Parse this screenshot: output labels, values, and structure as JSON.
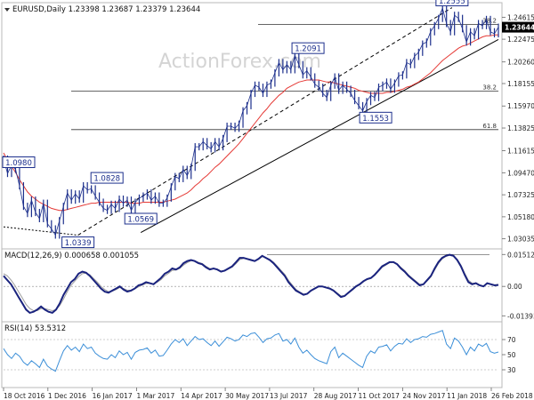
{
  "colors": {
    "price": "#1c2f8c",
    "ma": "#e53935",
    "macd": "#1a237e",
    "signal": "#9e9e9e",
    "rsi": "#3c8fd8",
    "trendline": "#000000",
    "fib": "#333333",
    "box": "#1c2f8c",
    "watermark": "#d4d4d4"
  },
  "chart_data": [
    {
      "type": "line",
      "panel": "price",
      "title": "EURUSD,Daily  1.23398 1.23687 1.23379 1.23644",
      "watermark": "ActionForex.com",
      "y_ticks": [
        "1.24615",
        "1.22475",
        "1.20260",
        "1.18155",
        "1.15970",
        "1.13825",
        "1.11615",
        "1.09470",
        "1.07325",
        "1.05180",
        "1.03035"
      ],
      "y_tick_values": [
        1.24615,
        1.22475,
        1.2026,
        1.18155,
        1.1597,
        1.13825,
        1.11615,
        1.0947,
        1.07325,
        1.0518,
        1.03035
      ],
      "current_price_label": "1.23644",
      "current_price": 1.23644,
      "ylim": [
        1.024,
        1.256
      ],
      "x_ticks": [
        "18 Oct 2016",
        "1 Dec 2016",
        "16 Jan 2017",
        "1 Mar 2017",
        "14 Apr 2017",
        "30 May 2017",
        "13 Jul 2017",
        "28 Aug 2017",
        "11 Oct 2017",
        "24 Nov 2017",
        "11 Jan 2018",
        "26 Feb 2018"
      ],
      "annotations": [
        {
          "label": "1.0980",
          "value": 1.098,
          "date": "2016-10-18"
        },
        {
          "label": "1.0339",
          "value": 1.0339,
          "date": "2017-01-03"
        },
        {
          "label": "1.0828",
          "value": 1.0828,
          "date": "2017-02-02"
        },
        {
          "label": "1.0569",
          "value": 1.0569,
          "date": "2017-03-09"
        },
        {
          "label": "1.2091",
          "value": 1.2091,
          "date": "2017-08-29"
        },
        {
          "label": "1.1553",
          "value": 1.1553,
          "date": "2017-11-07"
        },
        {
          "label": "1.2555",
          "value": 1.2555,
          "date": "2018-01-25"
        }
      ],
      "fib_levels": [
        {
          "label": "38.2",
          "value": 1.2392
        },
        {
          "label": "38.2",
          "value": 1.1743
        },
        {
          "label": "61.8",
          "value": 1.1367
        }
      ],
      "trendlines": [
        {
          "style": "solid",
          "from": {
            "date": "2017-03-09",
            "value": 1.0365
          },
          "to": {
            "date": "2018-03-14",
            "value": 1.2245
          }
        },
        {
          "style": "dashed",
          "from": {
            "date": "2017-01-03",
            "value": 1.0339
          },
          "to": {
            "date": "2018-01-25",
            "value": 1.2555
          }
        },
        {
          "style": "dotted",
          "from": {
            "date": "2016-10-18",
            "value": 1.042
          },
          "to": {
            "date": "2017-01-03",
            "value": 1.0339
          }
        }
      ],
      "series": [
        {
          "values": [
            1.108,
            1.094,
            1.102,
            1.098,
            1.082,
            1.062,
            1.055,
            1.068,
            1.056,
            1.05,
            1.065,
            1.045,
            1.04,
            1.034,
            1.048,
            1.062,
            1.075,
            1.068,
            1.074,
            1.069,
            1.082,
            1.078,
            1.079,
            1.072,
            1.066,
            1.06,
            1.058,
            1.064,
            1.06,
            1.069,
            1.065,
            1.068,
            1.058,
            1.066,
            1.07,
            1.072,
            1.075,
            1.068,
            1.072,
            1.065,
            1.065,
            1.07,
            1.081,
            1.091,
            1.089,
            1.098,
            1.092,
            1.1,
            1.12,
            1.12,
            1.125,
            1.121,
            1.118,
            1.125,
            1.12,
            1.128,
            1.14,
            1.14,
            1.138,
            1.142,
            1.155,
            1.16,
            1.172,
            1.18,
            1.178,
            1.172,
            1.18,
            1.182,
            1.192,
            1.202,
            1.195,
            1.2,
            1.195,
            1.209,
            1.2,
            1.19,
            1.194,
            1.188,
            1.181,
            1.178,
            1.172,
            1.168,
            1.18,
            1.188,
            1.175,
            1.18,
            1.176,
            1.172,
            1.165,
            1.16,
            1.155,
            1.164,
            1.17,
            1.168,
            1.178,
            1.18,
            1.183,
            1.176,
            1.182,
            1.189,
            1.19,
            1.202,
            1.2,
            1.208,
            1.212,
            1.22,
            1.222,
            1.232,
            1.238,
            1.245,
            1.255,
            1.24,
            1.232,
            1.248,
            1.245,
            1.235,
            1.222,
            1.232,
            1.228,
            1.24,
            1.238,
            1.244,
            1.232,
            1.23,
            1.23644
          ]
        },
        {
          "values": [
            1.114,
            1.107,
            1.101,
            1.095,
            1.088,
            1.082,
            1.076,
            1.072,
            1.069,
            1.066,
            1.064,
            1.062,
            1.06,
            1.059,
            1.058,
            1.058,
            1.059,
            1.06,
            1.061,
            1.062,
            1.063,
            1.064,
            1.065,
            1.065,
            1.066,
            1.066,
            1.066,
            1.066,
            1.066,
            1.066,
            1.066,
            1.066,
            1.065,
            1.065,
            1.065,
            1.066,
            1.066,
            1.066,
            1.066,
            1.066,
            1.066,
            1.067,
            1.068,
            1.069,
            1.071,
            1.073,
            1.075,
            1.078,
            1.082,
            1.085,
            1.089,
            1.092,
            1.096,
            1.1,
            1.103,
            1.107,
            1.111,
            1.115,
            1.119,
            1.123,
            1.128,
            1.133,
            1.138,
            1.143,
            1.148,
            1.153,
            1.157,
            1.162,
            1.166,
            1.17,
            1.173,
            1.177,
            1.179,
            1.181,
            1.183,
            1.184,
            1.185,
            1.185,
            1.185,
            1.185,
            1.184,
            1.183,
            1.183,
            1.182,
            1.181,
            1.18,
            1.179,
            1.178,
            1.177,
            1.175,
            1.174,
            1.173,
            1.172,
            1.172,
            1.172,
            1.172,
            1.173,
            1.173,
            1.174,
            1.175,
            1.176,
            1.178,
            1.179,
            1.181,
            1.183,
            1.186,
            1.189,
            1.192,
            1.196,
            1.2,
            1.204,
            1.207,
            1.21,
            1.213,
            1.216,
            1.218,
            1.219,
            1.221,
            1.223,
            1.225,
            1.227,
            1.228,
            1.228,
            1.229,
            1.229
          ]
        }
      ],
      "grid": false
    },
    {
      "type": "line",
      "panel": "macd",
      "title": "MACD(12,26,9) 0.000658 0.001055",
      "y_ticks": [
        "0.01512",
        "0.00",
        "-0.013938"
      ],
      "y_tick_values": [
        0.01512,
        0,
        -0.013938
      ],
      "ylim": [
        -0.0155,
        0.0165
      ],
      "series": [
        {
          "values": [
            0.005,
            0.003,
            0.001,
            -0.002,
            -0.005,
            -0.008,
            -0.011,
            -0.0125,
            -0.012,
            -0.011,
            -0.0095,
            -0.011,
            -0.012,
            -0.0125,
            -0.011,
            -0.008,
            -0.004,
            -0.001,
            0.002,
            0.0035,
            0.006,
            0.007,
            0.0065,
            0.005,
            0.003,
            0.001,
            -0.001,
            -0.0025,
            -0.003,
            -0.002,
            -0.001,
            0.0,
            -0.0015,
            -0.0025,
            -0.002,
            -0.001,
            0.0005,
            0.001,
            0.002,
            0.0015,
            0.001,
            0.0025,
            0.004,
            0.006,
            0.007,
            0.0085,
            0.008,
            0.009,
            0.011,
            0.012,
            0.0125,
            0.012,
            0.011,
            0.0105,
            0.009,
            0.008,
            0.0085,
            0.008,
            0.007,
            0.0075,
            0.0085,
            0.0095,
            0.0115,
            0.0135,
            0.0135,
            0.013,
            0.0125,
            0.012,
            0.013,
            0.0145,
            0.0135,
            0.0125,
            0.011,
            0.009,
            0.007,
            0.005,
            0.002,
            0.0,
            -0.002,
            -0.003,
            -0.004,
            -0.0035,
            -0.002,
            -0.001,
            0.0,
            0.0,
            -0.0005,
            -0.001,
            -0.002,
            -0.0035,
            -0.005,
            -0.0045,
            -0.003,
            -0.0015,
            0.0,
            0.001,
            0.0025,
            0.0035,
            0.004,
            0.0055,
            0.0075,
            0.0095,
            0.0105,
            0.0115,
            0.0115,
            0.0105,
            0.0085,
            0.007,
            0.005,
            0.0035,
            0.002,
            0.0005,
            0.001,
            0.003,
            0.005,
            0.0085,
            0.0115,
            0.0135,
            0.0145,
            0.015,
            0.0145,
            0.0125,
            0.0095,
            0.0055,
            0.002,
            0.001,
            0.0015,
            0.0005,
            0.0,
            0.0015,
            0.001,
            0.0005,
            0.000658
          ]
        },
        {
          "values": [
            0.006,
            0.005,
            0.003,
            0.0005,
            -0.0025,
            -0.0055,
            -0.0085,
            -0.0105,
            -0.0115,
            -0.0115,
            -0.0105,
            -0.0105,
            -0.011,
            -0.0115,
            -0.011,
            -0.009,
            -0.006,
            -0.0025,
            0.0005,
            0.0025,
            0.0045,
            0.006,
            0.0063,
            0.0055,
            0.0038,
            0.002,
            0.0,
            -0.0015,
            -0.0025,
            -0.0023,
            -0.0015,
            -0.0005,
            -0.001,
            -0.0018,
            -0.0018,
            -0.0012,
            -0.0002,
            0.0006,
            0.0014,
            0.0014,
            0.0012,
            0.002,
            0.0032,
            0.005,
            0.0062,
            0.0076,
            0.0078,
            0.0085,
            0.0101,
            0.0113,
            0.0121,
            0.0121,
            0.0114,
            0.0108,
            0.0095,
            0.0085,
            0.0084,
            0.0081,
            0.0073,
            0.0074,
            0.0082,
            0.0091,
            0.0108,
            0.0127,
            0.0132,
            0.0131,
            0.0127,
            0.0122,
            0.0128,
            0.0141,
            0.0136,
            0.0128,
            0.0115,
            0.0096,
            0.0076,
            0.0057,
            0.0029,
            0.0007,
            -0.0014,
            -0.0026,
            -0.0036,
            -0.0035,
            -0.0023,
            -0.0012,
            -0.0002,
            0.0,
            -0.0004,
            -0.0009,
            -0.0017,
            -0.0031,
            -0.0045,
            -0.0044,
            -0.0032,
            -0.0018,
            -0.0003,
            0.0008,
            0.0022,
            0.0032,
            0.0038,
            0.0052,
            0.0071,
            0.009,
            0.0101,
            0.0112,
            0.0114,
            0.0107,
            0.009,
            0.0075,
            0.0055,
            0.004,
            0.0025,
            0.001,
            0.001,
            0.0026,
            0.0045,
            0.0078,
            0.0108,
            0.013,
            0.0142,
            0.0148,
            0.0145,
            0.0128,
            0.0101,
            0.0063,
            0.0029,
            0.0015,
            0.0016,
            0.0007,
            0.0002,
            0.0013,
            0.0011,
            0.0007,
            0.001055
          ]
        }
      ]
    },
    {
      "type": "line",
      "panel": "rsi",
      "title": "RSI(14) 53.5312",
      "y_ticks": [
        "70",
        "50",
        "30"
      ],
      "y_tick_values": [
        70,
        50,
        30
      ],
      "ylim": [
        10,
        90
      ],
      "series": [
        {
          "values": [
            58,
            50,
            45,
            52,
            48,
            40,
            36,
            42,
            38,
            33,
            44,
            35,
            31,
            28,
            42,
            55,
            62,
            56,
            60,
            54,
            64,
            58,
            60,
            52,
            48,
            45,
            44,
            50,
            46,
            55,
            50,
            53,
            44,
            53,
            56,
            57,
            59,
            52,
            56,
            48,
            49,
            56,
            64,
            70,
            66,
            71,
            62,
            68,
            74,
            70,
            71,
            66,
            62,
            68,
            61,
            67,
            73,
            71,
            68,
            70,
            76,
            74,
            78,
            79,
            73,
            66,
            71,
            72,
            76,
            78,
            68,
            70,
            64,
            72,
            60,
            52,
            56,
            50,
            45,
            42,
            40,
            38,
            54,
            60,
            46,
            52,
            48,
            44,
            40,
            36,
            33,
            48,
            55,
            52,
            60,
            61,
            63,
            55,
            61,
            65,
            64,
            71,
            66,
            70,
            71,
            74,
            73,
            77,
            78,
            80,
            82,
            64,
            58,
            72,
            68,
            60,
            50,
            60,
            55,
            64,
            61,
            65,
            54,
            52,
            53.53
          ]
        }
      ]
    }
  ]
}
